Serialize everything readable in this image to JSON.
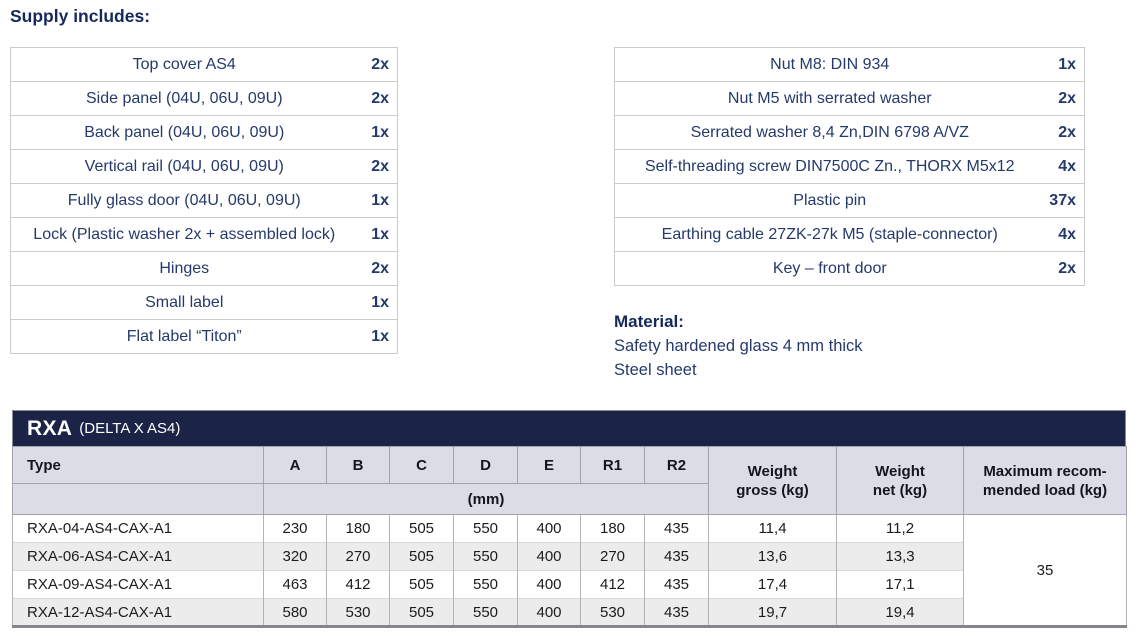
{
  "heading": "Supply includes:",
  "supply_left": {
    "items": [
      {
        "label": "Top cover AS4",
        "qty": "2x"
      },
      {
        "label": "Side panel (04U, 06U, 09U)",
        "qty": "2x"
      },
      {
        "label": "Back panel (04U, 06U, 09U)",
        "qty": "1x"
      },
      {
        "label": "Vertical rail (04U, 06U, 09U)",
        "qty": "2x"
      },
      {
        "label": "Fully glass door (04U, 06U, 09U)",
        "qty": "1x"
      },
      {
        "label": "Lock (Plastic washer 2x + assembled lock)",
        "qty": "1x"
      },
      {
        "label": "Hinges",
        "qty": "2x"
      },
      {
        "label": "Small label",
        "qty": "1x"
      },
      {
        "label": "Flat label “Titon”",
        "qty": "1x"
      }
    ]
  },
  "supply_right": {
    "items": [
      {
        "label": "Nut M8: DIN 934",
        "qty": "1x"
      },
      {
        "label": "Nut M5 with serrated washer",
        "qty": "2x"
      },
      {
        "label": "Serrated washer 8,4 Zn,DIN 6798 A/VZ",
        "qty": "2x"
      },
      {
        "label": "Self-threading screw DIN7500C Zn., THORX M5x12",
        "qty": "4x"
      },
      {
        "label": "Plastic pin",
        "qty": "37x"
      },
      {
        "label": "Earthing cable 27ZK-27k M5 (staple-connector)",
        "qty": "4x"
      },
      {
        "label": "Key – front door",
        "qty": "2x"
      }
    ]
  },
  "material": {
    "heading": "Material:",
    "lines": [
      "Safety hardened glass 4 mm thick",
      "Steel sheet"
    ]
  },
  "spec_table": {
    "title": "RXA",
    "subtitle": "(DELTA X AS4)",
    "type_header": "Type",
    "dim_headers": [
      "A",
      "B",
      "C",
      "D",
      "E",
      "R1",
      "R2"
    ],
    "unit_label": "(mm)",
    "weight_gross_header": [
      "Weight",
      "gross (kg)"
    ],
    "weight_net_header": [
      "Weight",
      "net (kg)"
    ],
    "max_load_header": [
      "Maximum recom-",
      "mended load (kg)"
    ],
    "max_load_value": "35",
    "rows": [
      {
        "type": "RXA-04-AS4-CAX-A1",
        "dims": [
          "230",
          "180",
          "505",
          "550",
          "400",
          "180",
          "435"
        ],
        "gross": "11,4",
        "net": "11,2"
      },
      {
        "type": "RXA-06-AS4-CAX-A1",
        "dims": [
          "320",
          "270",
          "505",
          "550",
          "400",
          "270",
          "435"
        ],
        "gross": "13,6",
        "net": "13,3"
      },
      {
        "type": "RXA-09-AS4-CAX-A1",
        "dims": [
          "463",
          "412",
          "505",
          "550",
          "400",
          "412",
          "435"
        ],
        "gross": "17,4",
        "net": "17,1"
      },
      {
        "type": "RXA-12-AS4-CAX-A1",
        "dims": [
          "580",
          "530",
          "505",
          "550",
          "400",
          "530",
          "435"
        ],
        "gross": "19,7",
        "net": "19,4"
      }
    ]
  },
  "colors": {
    "navy_bar": "#1b2447",
    "text_navy": "#25396b",
    "header_bg": "#dcdce6",
    "stripe": "#ececec"
  }
}
